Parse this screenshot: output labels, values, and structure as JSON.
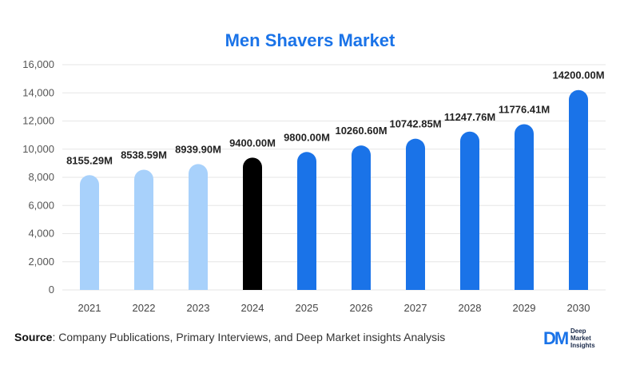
{
  "chart_data": {
    "type": "bar",
    "title": "Men Shavers Market",
    "categories": [
      "2021",
      "2022",
      "2023",
      "2024",
      "2025",
      "2026",
      "2027",
      "2028",
      "2029",
      "2030"
    ],
    "values": [
      8155.29,
      8538.59,
      8939.9,
      9400.0,
      9800.0,
      10260.6,
      10742.85,
      11247.76,
      11776.41,
      14200.0
    ],
    "data_labels": [
      "8155.29M",
      "8538.59M",
      "8939.90M",
      "9400.00M",
      "9800.00M",
      "10260.60M",
      "10742.85M",
      "11247.76M",
      "11776.41M",
      "14200.00M"
    ],
    "yticks": [
      "0",
      "2,000",
      "4,000",
      "6,000",
      "8,000",
      "10,000",
      "12,000",
      "14,000",
      "16,000"
    ],
    "ylim": [
      0,
      16000
    ],
    "grid": true,
    "colors": {
      "historical": "#a8d1fb",
      "current": "#000000",
      "forecast": "#1a73e8"
    },
    "bar_roles": [
      "historical",
      "historical",
      "historical",
      "current",
      "forecast",
      "forecast",
      "forecast",
      "forecast",
      "forecast",
      "forecast"
    ]
  },
  "footer": {
    "source_label": "Source",
    "source_text": ": Company Publications, Primary Interviews, and Deep Market insights Analysis"
  },
  "logo": {
    "mark": "DM",
    "line1": "Deep",
    "line2": "Market",
    "line3": "Insights"
  }
}
